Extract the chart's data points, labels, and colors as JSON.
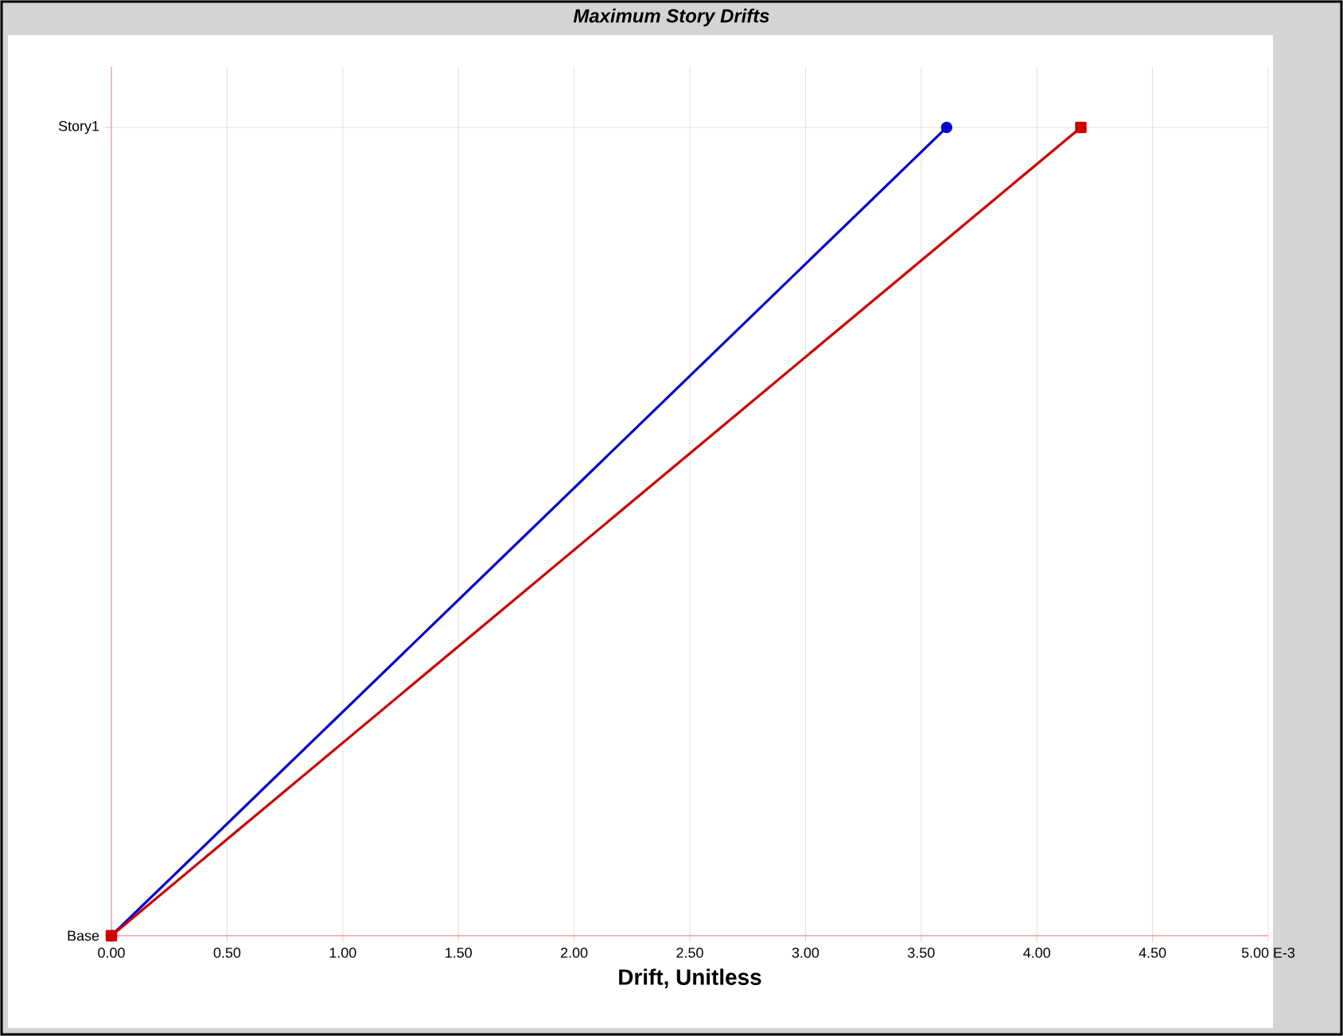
{
  "chart_data": {
    "type": "line",
    "title": "Maximum Story Drifts",
    "xlabel": "Drift, Unitless",
    "orientation": "horizontal",
    "categories": [
      "Story1",
      "Base"
    ],
    "series": [
      {
        "color": "#0000cc",
        "values": [
          3.61,
          0
        ],
        "marker": "circle"
      },
      {
        "color": "#cc0000",
        "values": [
          4.19,
          0
        ],
        "marker": "square"
      }
    ],
    "xlim": [
      0,
      5
    ],
    "xticks": [
      {
        "value": 0,
        "label": "0.00"
      },
      {
        "value": 0.5,
        "label": "0.50"
      },
      {
        "value": 1,
        "label": "1.00"
      },
      {
        "value": 1.5,
        "label": "1.50"
      },
      {
        "value": 2,
        "label": "2.00"
      },
      {
        "value": 2.5,
        "label": "2.50"
      },
      {
        "value": 3,
        "label": "3.00"
      },
      {
        "value": 3.5,
        "label": "3.50"
      },
      {
        "value": 4,
        "label": "4.00"
      },
      {
        "value": 4.5,
        "label": "4.50"
      },
      {
        "value": 5,
        "label": "5.00 E-3"
      }
    ],
    "grid": true,
    "line_style": "solid"
  }
}
